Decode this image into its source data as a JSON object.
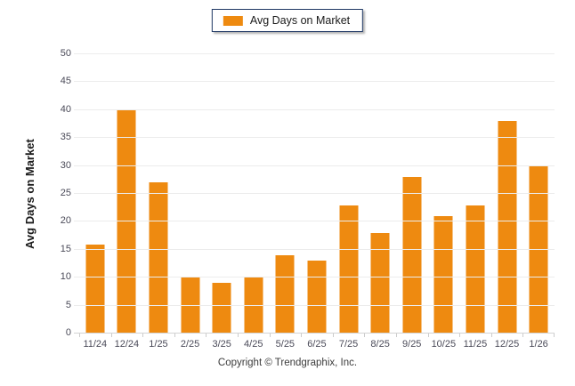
{
  "legend": {
    "label": "Avg Days on Market"
  },
  "chart_data": {
    "type": "bar",
    "categories": [
      "11/24",
      "12/24",
      "1/25",
      "2/25",
      "3/25",
      "4/25",
      "5/25",
      "6/25",
      "7/25",
      "8/25",
      "9/25",
      "10/25",
      "11/25",
      "12/25",
      "1/26"
    ],
    "values": [
      16,
      40,
      27,
      10,
      9,
      10,
      14,
      13,
      23,
      18,
      28,
      21,
      23,
      38,
      30
    ],
    "title": "",
    "xlabel": "",
    "ylabel": "Avg Days on Market",
    "ylim": [
      0,
      50
    ],
    "ytick_step": 5,
    "grid": true,
    "legend_position": "top-center",
    "bar_color": "#EE8A10"
  },
  "colors": {
    "bar": "#EE8A10",
    "legend_border": "#1F3864",
    "gridline": "#ECECEC",
    "axis_line": "#D4D4D4",
    "tick_label": "#4A4A58",
    "background": "#FFFFFF"
  },
  "footer": {
    "copyright": "Copyright © Trendgraphix, Inc."
  }
}
